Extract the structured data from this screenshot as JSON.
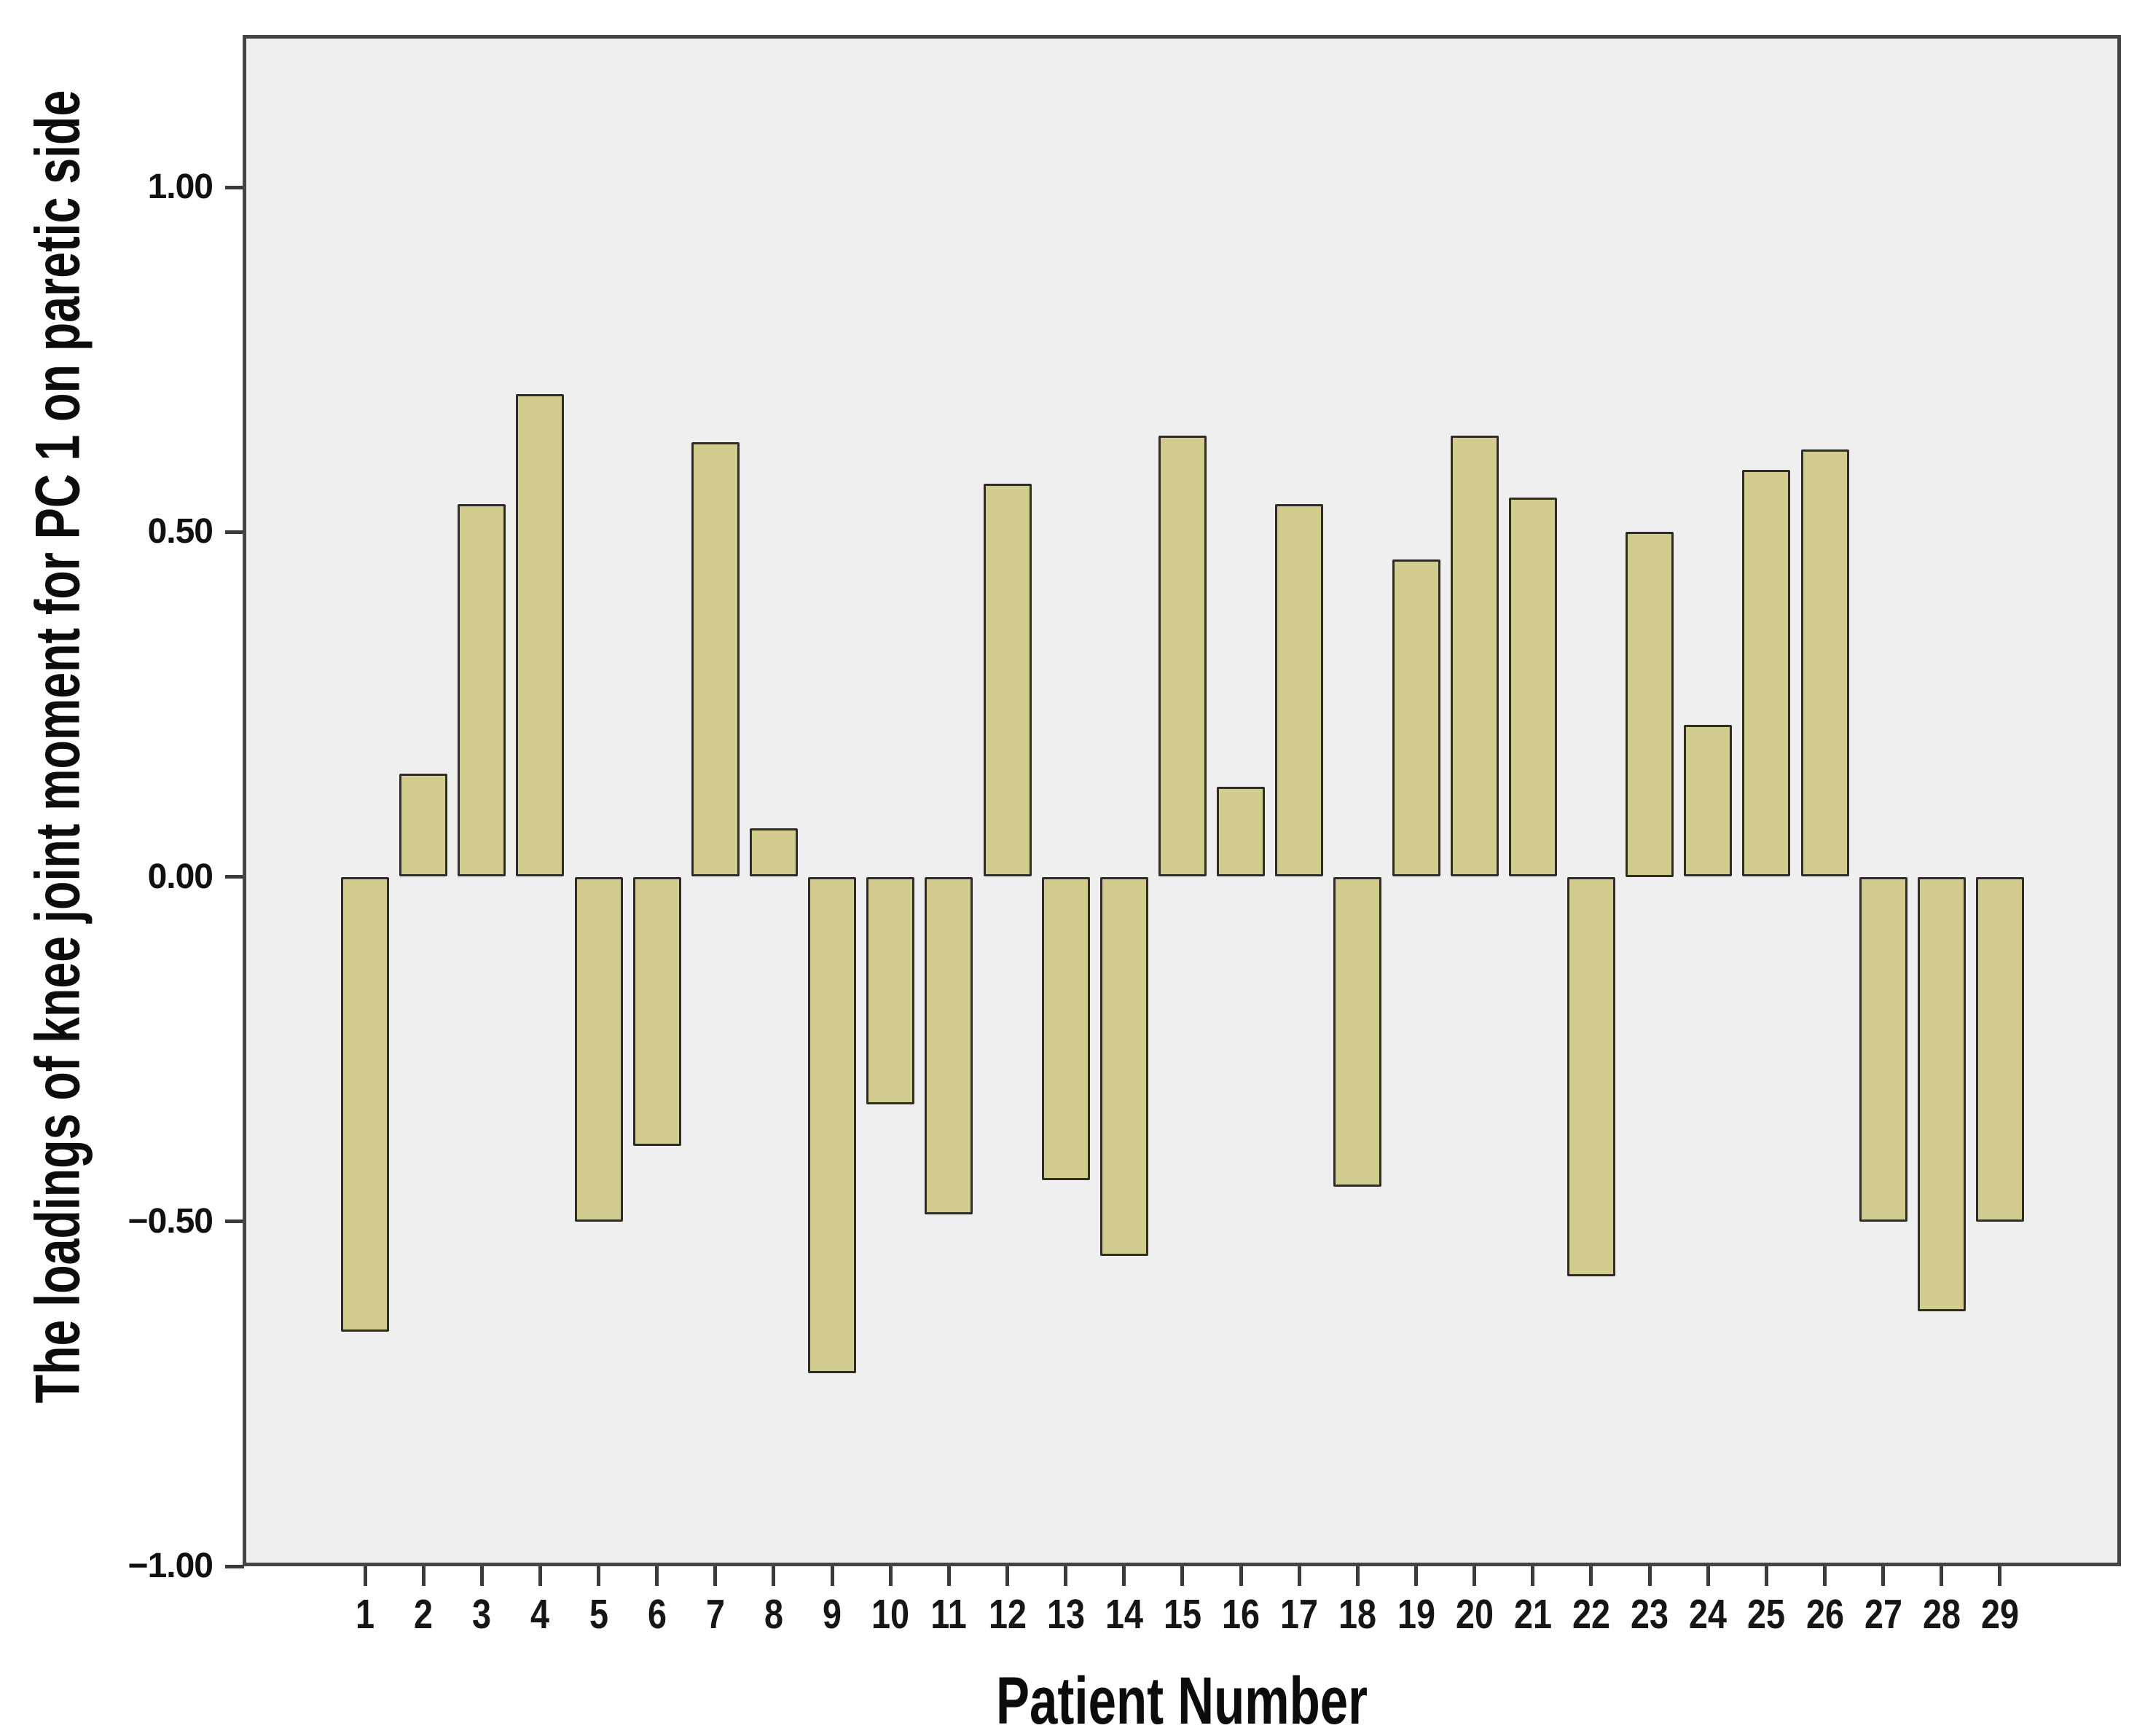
{
  "chart_data": {
    "type": "bar",
    "title": "",
    "xlabel": "Patient Number",
    "ylabel": "The loadings of knee joint moment for PC 1 on paretic side",
    "categories": [
      "1",
      "2",
      "3",
      "4",
      "5",
      "6",
      "7",
      "8",
      "9",
      "10",
      "11",
      "12",
      "13",
      "14",
      "15",
      "16",
      "17",
      "18",
      "19",
      "20",
      "21",
      "22",
      "23",
      "24",
      "25",
      "26",
      "27",
      "28",
      "29"
    ],
    "values": [
      -0.66,
      0.15,
      0.54,
      0.7,
      -0.5,
      -0.39,
      0.63,
      0.07,
      -0.72,
      -0.33,
      -0.49,
      0.57,
      -0.44,
      -0.55,
      0.64,
      0.13,
      0.54,
      -0.45,
      0.46,
      0.64,
      0.55,
      -0.58,
      0.5,
      0.22,
      0.59,
      0.62,
      -0.5,
      -0.63,
      -0.5
    ],
    "ylim": [
      -1.0,
      1.22
    ],
    "yticks": [
      1.0,
      0.5,
      0.0,
      -0.5,
      -1.0
    ],
    "ytick_labels": [
      "1.00",
      "0.50",
      "0.00",
      "−0.50",
      "−1.00"
    ],
    "grid": false,
    "legend_position": "none",
    "bar_fill_color": "#d3cc8f",
    "bar_border_color": "#2f2d26",
    "plot_background_color": "#f0eff0",
    "frame_color": "#454545",
    "outer_background_color": "#ffffff"
  }
}
